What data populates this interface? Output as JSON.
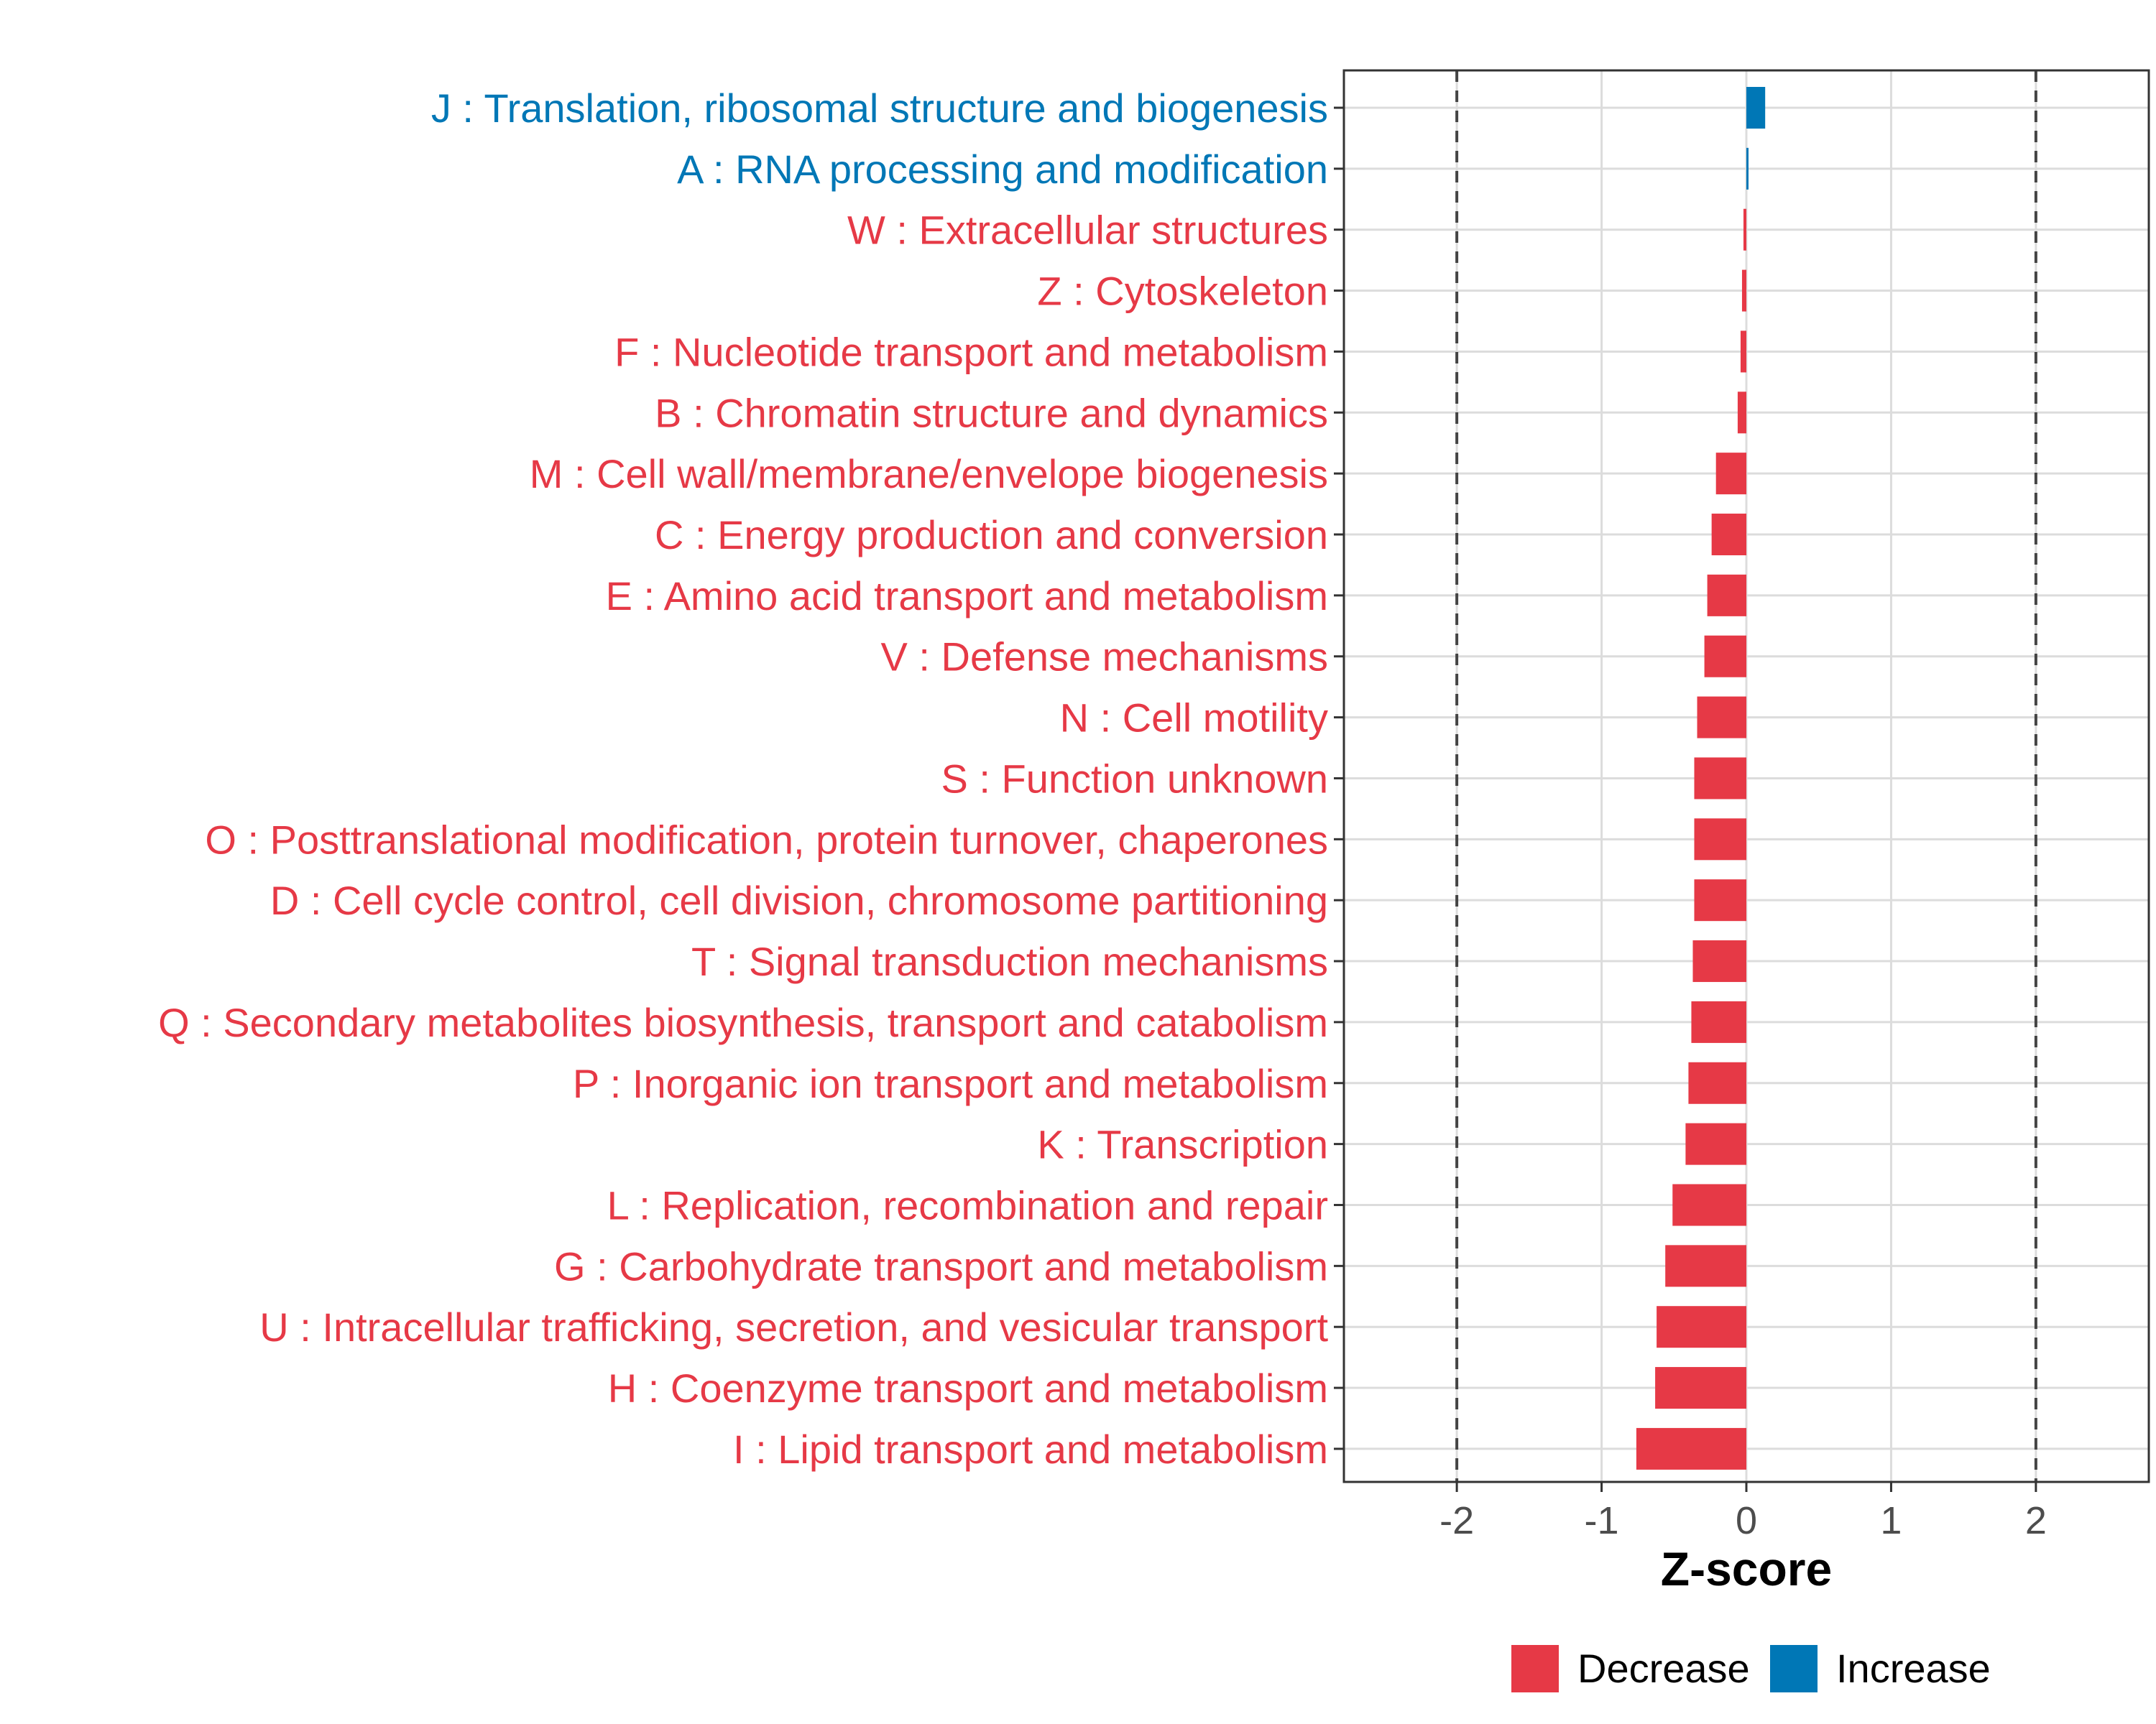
{
  "chart_data": {
    "type": "bar",
    "orientation": "horizontal",
    "categories": [
      "J : Translation, ribosomal structure and biogenesis",
      "A : RNA processing and modification",
      "W : Extracellular structures",
      "Z : Cytoskeleton",
      "F : Nucleotide transport and metabolism",
      "B : Chromatin structure and dynamics",
      "M : Cell wall/membrane/envelope biogenesis",
      "C : Energy production and conversion",
      "E : Amino acid transport and metabolism",
      "V : Defense mechanisms",
      "N : Cell motility",
      "S : Function unknown",
      "O : Posttranslational modification, protein turnover, chaperones",
      "D : Cell cycle control, cell division, chromosome partitioning",
      "T : Signal transduction mechanisms",
      "Q : Secondary metabolites biosynthesis, transport and catabolism",
      "P : Inorganic ion transport and metabolism",
      "K : Transcription",
      "L : Replication, recombination and repair",
      "G : Carbohydrate transport and metabolism",
      "U : Intracellular trafficking, secretion, and vesicular transport",
      "H : Coenzyme transport and metabolism",
      "I : Lipid transport and metabolism"
    ],
    "values": [
      0.13,
      0.01,
      -0.02,
      -0.03,
      -0.04,
      -0.06,
      -0.21,
      -0.24,
      -0.27,
      -0.29,
      -0.34,
      -0.36,
      -0.36,
      -0.36,
      -0.37,
      -0.38,
      -0.4,
      -0.42,
      -0.51,
      -0.56,
      -0.62,
      -0.63,
      -0.76
    ],
    "groups": [
      "Increase",
      "Increase",
      "Decrease",
      "Decrease",
      "Decrease",
      "Decrease",
      "Decrease",
      "Decrease",
      "Decrease",
      "Decrease",
      "Decrease",
      "Decrease",
      "Decrease",
      "Decrease",
      "Decrease",
      "Decrease",
      "Decrease",
      "Decrease",
      "Decrease",
      "Decrease",
      "Decrease",
      "Decrease",
      "Decrease"
    ],
    "xlabel": "Z-score",
    "xlim": [
      -2.78,
      2.78
    ],
    "xticks": [
      -2,
      -1,
      0,
      1,
      2
    ],
    "reference_lines": [
      -2,
      2
    ],
    "grid": true,
    "legend": {
      "position": "bottom",
      "entries": [
        {
          "label": "Decrease",
          "color": "#e63946"
        },
        {
          "label": "Increase",
          "color": "#0077b6"
        }
      ]
    },
    "colors": {
      "Decrease": "#e63946",
      "Increase": "#0077b6"
    }
  }
}
